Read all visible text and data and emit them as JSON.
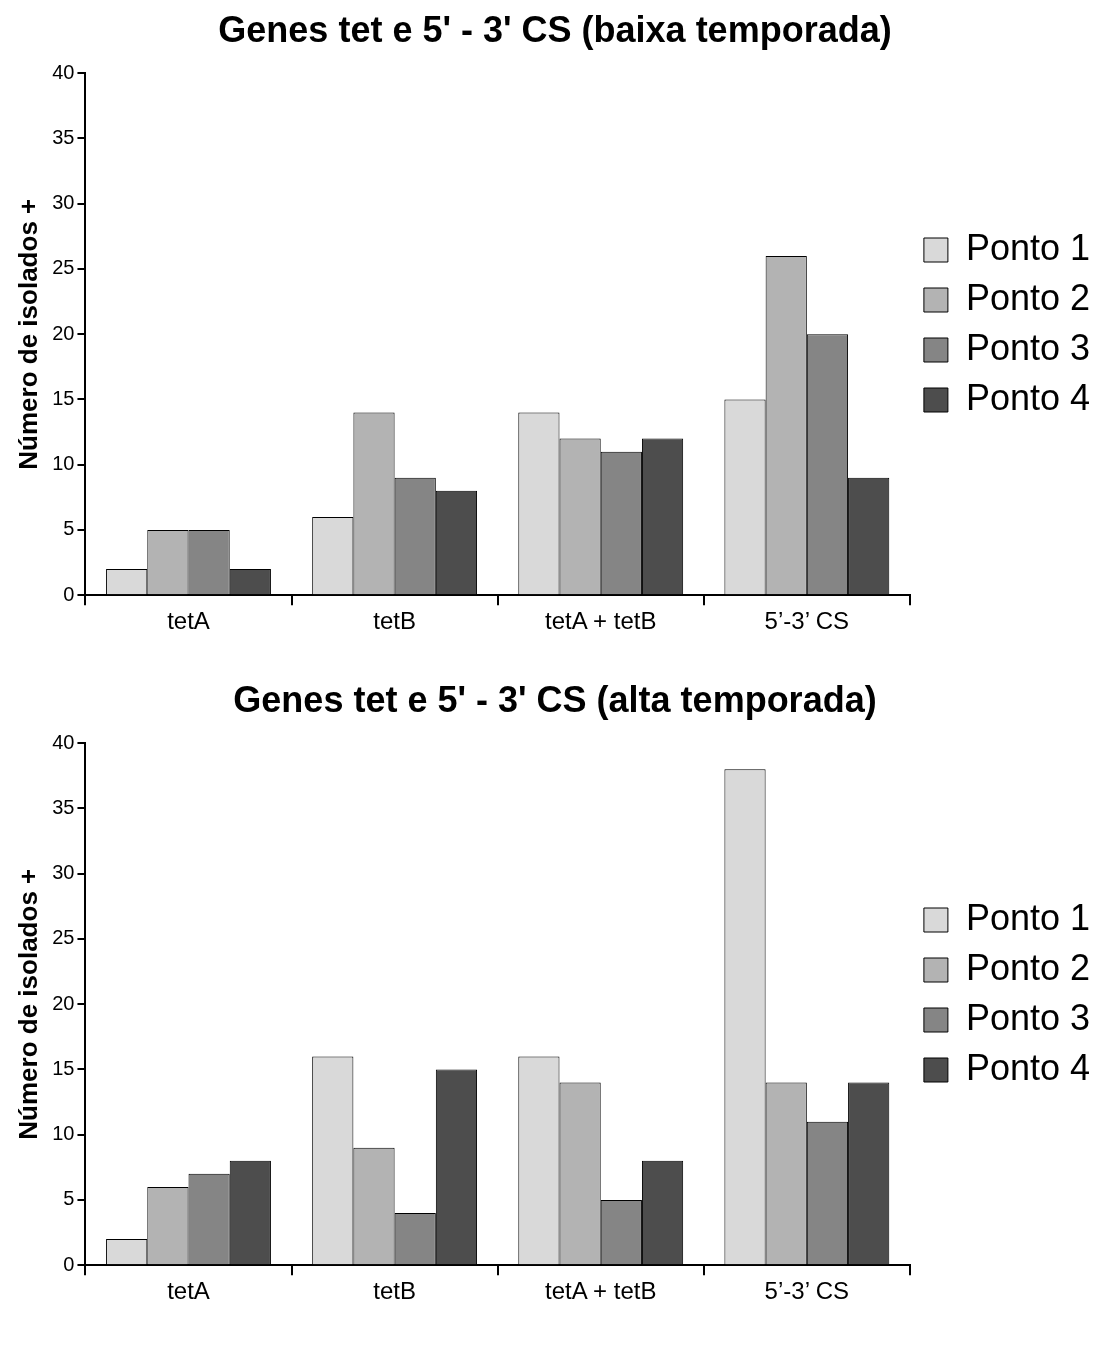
{
  "chart_data": [
    {
      "type": "bar",
      "title": "Genes tet e 5' - 3' CS (baixa temporada)",
      "ylabel": "Número de isolados +",
      "categories": [
        "tetA",
        "tetB",
        "tetA + tetB",
        "5’-3’ CS"
      ],
      "series": [
        {
          "name": "Ponto 1",
          "color": "#d9d9d9",
          "values": [
            2,
            6,
            14,
            15
          ]
        },
        {
          "name": "Ponto 2",
          "color": "#b3b3b3",
          "values": [
            5,
            14,
            12,
            26
          ]
        },
        {
          "name": "Ponto 3",
          "color": "#858585",
          "values": [
            5,
            9,
            11,
            20
          ]
        },
        {
          "name": "Ponto 4",
          "color": "#4d4d4d",
          "values": [
            2,
            8,
            12,
            9
          ]
        }
      ],
      "ylim": [
        0,
        40
      ],
      "yticks": [
        0,
        5,
        10,
        15,
        20,
        25,
        30,
        35,
        40
      ],
      "grid": false,
      "legend": "right"
    },
    {
      "type": "bar",
      "title": "Genes tet e 5' - 3' CS (alta temporada)",
      "ylabel": "Número de isolados +",
      "categories": [
        "tetA",
        "tetB",
        "tetA + tetB",
        "5’-3’ CS"
      ],
      "series": [
        {
          "name": "Ponto 1",
          "color": "#d9d9d9",
          "values": [
            2,
            16,
            16,
            38
          ]
        },
        {
          "name": "Ponto 2",
          "color": "#b3b3b3",
          "values": [
            6,
            9,
            14,
            14
          ]
        },
        {
          "name": "Ponto 3",
          "color": "#858585",
          "values": [
            7,
            4,
            5,
            11
          ]
        },
        {
          "name": "Ponto 4",
          "color": "#4d4d4d",
          "values": [
            8,
            15,
            8,
            14
          ]
        }
      ],
      "ylim": [
        0,
        40
      ],
      "yticks": [
        0,
        5,
        10,
        15,
        20,
        25,
        30,
        35,
        40
      ],
      "grid": false,
      "legend": "right"
    }
  ]
}
